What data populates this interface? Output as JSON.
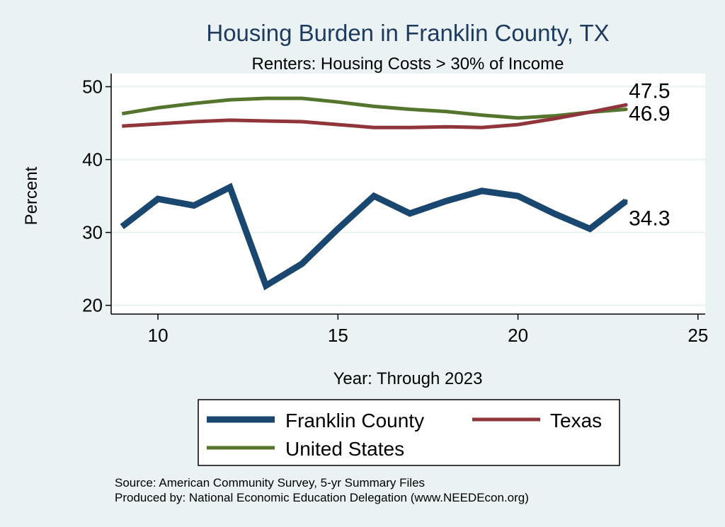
{
  "chart_data": {
    "type": "line",
    "title": "Housing Burden in Franklin County, TX",
    "subtitle": "Renters: Housing Costs > 30% of Income",
    "xlabel": "Year: Through 2023",
    "ylabel": "Percent",
    "xlim": [
      8.7,
      25.2
    ],
    "ylim": [
      18.8,
      51.8
    ],
    "xticks": [
      10,
      15,
      20,
      25
    ],
    "yticks": [
      20,
      30,
      40,
      50
    ],
    "grid": true,
    "series": [
      {
        "name": "Franklin County",
        "color": "#1a476f",
        "x": [
          9,
          10,
          11,
          12,
          13,
          14,
          15,
          16,
          17,
          18,
          19,
          20,
          21,
          22,
          23
        ],
        "values": [
          30.8,
          34.6,
          33.7,
          36.2,
          22.7,
          25.7,
          30.5,
          35.0,
          32.6,
          34.3,
          35.7,
          35.0,
          32.6,
          30.5,
          34.3
        ],
        "end_label": "34.3"
      },
      {
        "name": "Texas",
        "color": "#90353b",
        "x": [
          9,
          10,
          11,
          12,
          13,
          14,
          15,
          16,
          17,
          18,
          19,
          20,
          21,
          22,
          23
        ],
        "values": [
          44.6,
          44.9,
          45.2,
          45.4,
          45.3,
          45.2,
          44.8,
          44.4,
          44.4,
          44.5,
          44.4,
          44.8,
          45.6,
          46.5,
          47.5
        ],
        "end_label": "47.5"
      },
      {
        "name": "United States",
        "color": "#55752f",
        "x": [
          9,
          10,
          11,
          12,
          13,
          14,
          15,
          16,
          17,
          18,
          19,
          20,
          21,
          22,
          23
        ],
        "values": [
          46.3,
          47.1,
          47.7,
          48.2,
          48.4,
          48.4,
          47.9,
          47.3,
          46.9,
          46.6,
          46.1,
          45.7,
          46.0,
          46.5,
          46.9
        ],
        "end_label": "46.9"
      }
    ],
    "legend": {
      "placement": "bottom",
      "entries": [
        "Franklin County",
        "Texas",
        "United States"
      ]
    },
    "source_lines": [
      "Source: American Community Survey, 5-yr Summary Files",
      "Produced by: National Economic Education Delegation (www.NEEDEcon.org)"
    ]
  }
}
